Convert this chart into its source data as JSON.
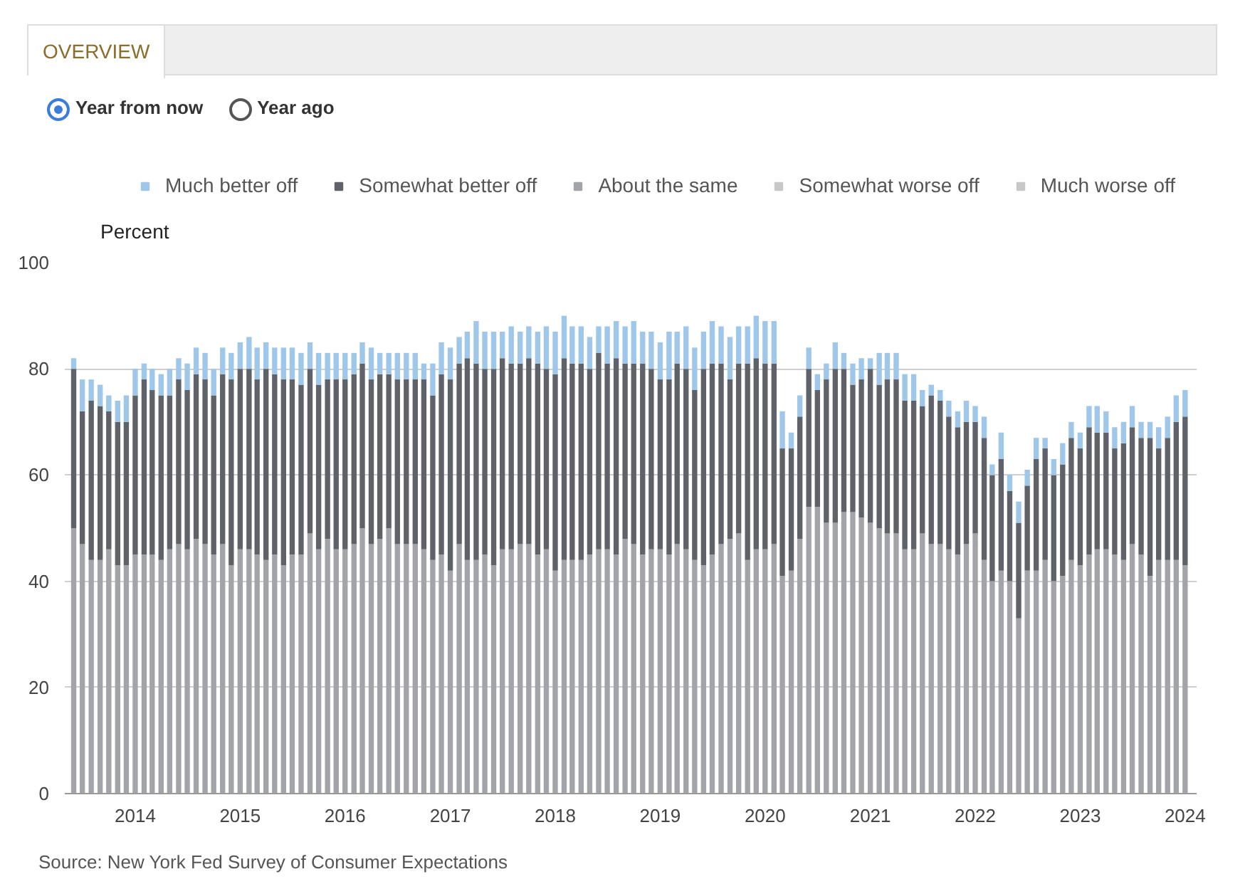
{
  "chart_data": {
    "type": "bar",
    "stacked": true,
    "ylabel": "Percent",
    "legend": "top",
    "grid": "y",
    "annotations": [
      "OVERVIEW",
      "Year from now",
      "Year ago",
      "Source: New York Fed Survey of Consumer Expectations"
    ],
    "x": [
      "2013-06",
      "2013-07",
      "2013-08",
      "2013-09",
      "2013-10",
      "2013-11",
      "2013-12",
      "2014-01",
      "2014-02",
      "2014-03",
      "2014-04",
      "2014-05",
      "2014-06",
      "2014-07",
      "2014-08",
      "2014-09",
      "2014-10",
      "2014-11",
      "2014-12",
      "2015-01",
      "2015-02",
      "2015-03",
      "2015-04",
      "2015-05",
      "2015-06",
      "2015-07",
      "2015-08",
      "2015-09",
      "2015-10",
      "2015-11",
      "2015-12",
      "2016-01",
      "2016-02",
      "2016-03",
      "2016-04",
      "2016-05",
      "2016-06",
      "2016-07",
      "2016-08",
      "2016-09",
      "2016-10",
      "2016-11",
      "2016-12",
      "2017-01",
      "2017-02",
      "2017-03",
      "2017-04",
      "2017-05",
      "2017-06",
      "2017-07",
      "2017-08",
      "2017-09",
      "2017-10",
      "2017-11",
      "2017-12",
      "2018-01",
      "2018-02",
      "2018-03",
      "2018-04",
      "2018-05",
      "2018-06",
      "2018-07",
      "2018-08",
      "2018-09",
      "2018-10",
      "2018-11",
      "2018-12",
      "2019-01",
      "2019-02",
      "2019-03",
      "2019-04",
      "2019-05",
      "2019-06",
      "2019-07",
      "2019-08",
      "2019-09",
      "2019-10",
      "2019-11",
      "2019-12",
      "2020-01",
      "2020-02",
      "2020-03",
      "2020-04",
      "2020-05",
      "2020-06",
      "2020-07",
      "2020-08",
      "2020-09",
      "2020-10",
      "2020-11",
      "2020-12",
      "2021-01",
      "2021-02",
      "2021-03",
      "2021-04",
      "2021-05",
      "2021-06",
      "2021-07",
      "2021-08",
      "2021-09",
      "2021-10",
      "2021-11",
      "2021-12",
      "2022-01",
      "2022-02",
      "2022-03",
      "2022-04",
      "2022-05",
      "2022-06",
      "2022-07",
      "2022-08",
      "2022-09",
      "2022-10",
      "2022-11",
      "2022-12",
      "2023-01",
      "2023-02",
      "2023-03",
      "2023-04",
      "2023-05",
      "2023-06",
      "2023-07",
      "2023-08",
      "2023-09",
      "2023-10",
      "2023-11",
      "2023-12",
      "2024-01"
    ],
    "xlim": [
      "2013-05-01",
      "2024-02-10"
    ],
    "xticks": [
      "2014",
      "2015",
      "2016",
      "2017",
      "2018",
      "2019",
      "2020",
      "2021",
      "2022",
      "2023",
      "2024"
    ],
    "ylim": [
      0,
      100
    ],
    "yticks": [
      0,
      20,
      40,
      60,
      80,
      100
    ],
    "series": [
      {
        "name": "About the same",
        "color": "#a3a4a9",
        "values": [
          50,
          47,
          44,
          44,
          46,
          43,
          43,
          45,
          45,
          45,
          44,
          46,
          47,
          46,
          48,
          47,
          45,
          47,
          43,
          46,
          46,
          45,
          44,
          45,
          43,
          45,
          45,
          49,
          46,
          48,
          46,
          46,
          47,
          50,
          47,
          48,
          50,
          47,
          47,
          47,
          46,
          44,
          45,
          42,
          47,
          44,
          44,
          45,
          43,
          46,
          46,
          47,
          47,
          45,
          46,
          42,
          44,
          44,
          44,
          45,
          46,
          46,
          45,
          48,
          47,
          45,
          46,
          46,
          45,
          47,
          46,
          44,
          43,
          45,
          47,
          48,
          49,
          44,
          46,
          46,
          47,
          41,
          42,
          48,
          54,
          54,
          51,
          51,
          53,
          53,
          52,
          51,
          50,
          49,
          49,
          46,
          46,
          49,
          47,
          47,
          46,
          45,
          47,
          49,
          44,
          40,
          42,
          40,
          33,
          42,
          42,
          44,
          40,
          41,
          44,
          43,
          45,
          46,
          46,
          45,
          44,
          47,
          45,
          41,
          44,
          44,
          44,
          43
        ]
      },
      {
        "name": "Somewhat better off",
        "color": "#5f6369",
        "values": [
          30,
          25,
          30,
          29,
          26,
          27,
          27,
          30,
          33,
          31,
          31,
          29,
          31,
          30,
          31,
          31,
          30,
          32,
          35,
          34,
          34,
          33,
          36,
          34,
          35,
          33,
          32,
          31,
          31,
          30,
          32,
          32,
          32,
          31,
          31,
          31,
          29,
          31,
          31,
          31,
          32,
          31,
          34,
          36,
          34,
          38,
          37,
          35,
          37,
          36,
          35,
          34,
          35,
          36,
          34,
          37,
          38,
          37,
          37,
          35,
          37,
          35,
          37,
          33,
          34,
          36,
          34,
          32,
          33,
          34,
          34,
          32,
          37,
          36,
          34,
          30,
          32,
          37,
          36,
          35,
          34,
          24,
          23,
          23,
          26,
          22,
          27,
          29,
          27,
          24,
          26,
          29,
          27,
          29,
          29,
          28,
          28,
          24,
          28,
          27,
          25,
          24,
          23,
          21,
          23,
          20,
          21,
          17,
          18,
          16,
          21,
          21,
          20,
          21,
          23,
          22,
          24,
          22,
          22,
          20,
          22,
          22,
          22,
          26,
          21,
          23,
          26,
          28
        ]
      },
      {
        "name": "Much better off",
        "color": "#9fc7ea",
        "values": [
          2,
          6,
          4,
          4,
          3,
          4,
          5,
          5,
          3,
          4,
          4,
          5,
          4,
          5,
          5,
          5,
          5,
          5,
          5,
          5,
          6,
          6,
          5,
          5,
          6,
          6,
          6,
          5,
          6,
          5,
          5,
          5,
          4,
          4,
          6,
          4,
          4,
          5,
          5,
          5,
          3,
          6,
          6,
          6,
          5,
          5,
          8,
          7,
          7,
          5,
          7,
          6,
          6,
          6,
          8,
          8,
          8,
          7,
          7,
          6,
          5,
          7,
          7,
          7,
          8,
          6,
          7,
          7,
          9,
          6,
          8,
          8,
          7,
          8,
          7,
          8,
          7,
          7,
          8,
          8,
          8,
          7,
          3,
          4,
          4,
          3,
          3,
          5,
          3,
          4,
          4,
          2,
          6,
          5,
          5,
          5,
          5,
          3,
          2,
          2,
          3,
          3,
          4,
          3,
          4,
          2,
          5,
          3,
          4,
          3,
          4,
          2,
          3,
          4,
          3,
          3,
          4,
          5,
          4,
          4,
          4,
          4,
          3,
          3,
          4,
          4,
          5,
          5
        ]
      },
      {
        "name": "Somewhat worse off",
        "color": "#c8c8c8",
        "values": [
          null,
          null,
          null,
          null,
          null,
          null,
          null,
          null,
          null,
          null,
          null,
          null,
          null,
          null,
          null,
          null,
          null,
          null,
          null,
          null,
          null,
          null,
          null,
          null,
          null,
          null,
          null,
          null,
          null,
          null,
          null,
          null,
          null,
          null,
          null,
          null,
          null,
          null,
          null,
          null,
          null,
          null,
          null,
          null,
          null,
          null,
          null,
          null,
          null,
          null,
          null,
          null,
          null,
          null,
          null,
          null,
          null,
          null,
          null,
          null,
          null,
          null,
          null,
          null,
          null,
          null,
          null,
          null,
          null,
          null,
          null,
          null,
          null,
          null,
          null,
          null,
          null,
          null,
          null,
          null,
          null,
          null,
          null,
          null,
          null,
          null,
          null,
          null,
          null,
          null,
          null,
          null,
          null,
          null,
          null,
          null,
          null,
          null,
          null,
          null,
          null,
          null,
          null,
          null,
          null,
          null,
          null,
          null,
          null,
          null,
          null,
          null,
          null,
          null,
          null,
          null,
          null,
          null,
          null,
          null,
          null,
          null,
          null,
          null,
          null,
          null,
          null,
          null
        ]
      },
      {
        "name": "Much worse off",
        "color": "#c8c8c8",
        "values": [
          null,
          null,
          null,
          null,
          null,
          null,
          null,
          null,
          null,
          null,
          null,
          null,
          null,
          null,
          null,
          null,
          null,
          null,
          null,
          null,
          null,
          null,
          null,
          null,
          null,
          null,
          null,
          null,
          null,
          null,
          null,
          null,
          null,
          null,
          null,
          null,
          null,
          null,
          null,
          null,
          null,
          null,
          null,
          null,
          null,
          null,
          null,
          null,
          null,
          null,
          null,
          null,
          null,
          null,
          null,
          null,
          null,
          null,
          null,
          null,
          null,
          null,
          null,
          null,
          null,
          null,
          null,
          null,
          null,
          null,
          null,
          null,
          null,
          null,
          null,
          null,
          null,
          null,
          null,
          null,
          null,
          null,
          null,
          null,
          null,
          null,
          null,
          null,
          null,
          null,
          null,
          null,
          null,
          null,
          null,
          null,
          null,
          null,
          null,
          null,
          null,
          null,
          null,
          null,
          null,
          null,
          null,
          null,
          null,
          null,
          null,
          null,
          null,
          null,
          null,
          null,
          null,
          null,
          null,
          null,
          null,
          null,
          null,
          null,
          null,
          null,
          null,
          null
        ]
      }
    ]
  }
}
